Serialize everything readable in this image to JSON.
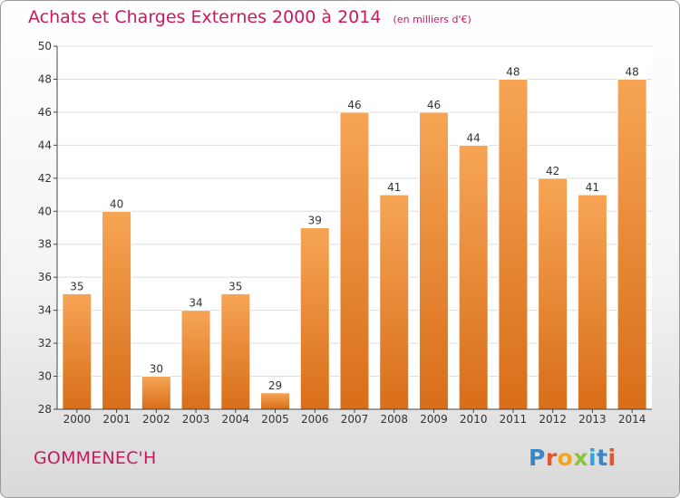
{
  "header": {
    "title": "Achats et Charges Externes 2000 à 2014",
    "subtitle": "(en milliers d'€)"
  },
  "footer": {
    "commune": "GOMMENEC'H",
    "logo_text": "Proxiti"
  },
  "colors": {
    "title": "#c8195f",
    "bar_top": "#f6a555",
    "bar_bottom": "#d86e19",
    "grid": "#dddddd",
    "axis": "#444444"
  },
  "chart_data": {
    "type": "bar",
    "categories": [
      "2000",
      "2001",
      "2002",
      "2003",
      "2004",
      "2005",
      "2006",
      "2007",
      "2008",
      "2009",
      "2010",
      "2011",
      "2012",
      "2013",
      "2014"
    ],
    "values": [
      35,
      40,
      30,
      34,
      35,
      29,
      39,
      46,
      41,
      46,
      44,
      48,
      42,
      41,
      48
    ],
    "ylim": [
      28,
      50
    ],
    "yticks": [
      28,
      30,
      32,
      34,
      36,
      38,
      40,
      42,
      44,
      46,
      48,
      50
    ],
    "grid": true,
    "data_labels": true
  }
}
